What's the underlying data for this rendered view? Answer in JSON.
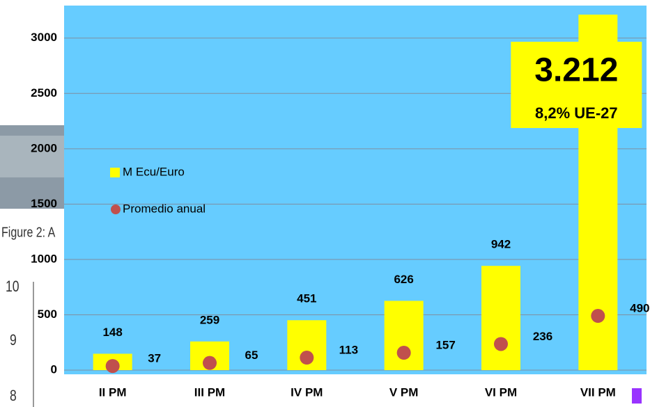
{
  "chart_data": {
    "type": "bar",
    "categories": [
      "II PM",
      "III PM",
      "IV PM",
      "V PM",
      "VI PM",
      "VII PM"
    ],
    "series": [
      {
        "name": "M Ecu/Euro",
        "color": "#ffff00",
        "values": [
          148,
          259,
          451,
          626,
          942,
          3212
        ],
        "value_labels": [
          "148",
          "259",
          "451",
          "626",
          "942",
          "3.212"
        ]
      },
      {
        "name": "Promedio anual",
        "color": "#c0504d",
        "values": [
          37,
          65,
          113,
          157,
          236,
          490
        ]
      }
    ],
    "annotations": [
      "8,2% UE-27"
    ],
    "ylim": [
      0,
      3300
    ],
    "yticks": [
      0,
      500,
      1000,
      1500,
      2000,
      2500,
      3000
    ],
    "grid": true,
    "background_texts": [
      "Figure 2: A",
      "10",
      "9",
      "8"
    ]
  }
}
